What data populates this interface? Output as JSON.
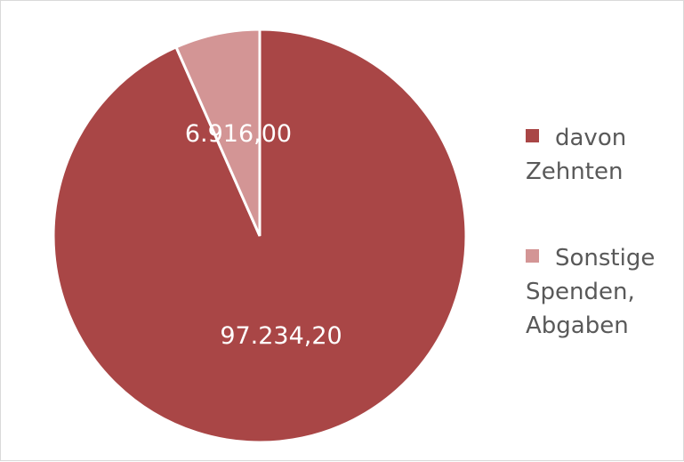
{
  "chart_data": {
    "type": "pie",
    "categories": [
      "davon Zehnten",
      "Sonstige Spenden, Abgaben"
    ],
    "values": [
      97234.2,
      6916.0
    ],
    "value_labels": [
      "97.234,20",
      "6.916,00"
    ],
    "colors": [
      "#a94646",
      "#d39595"
    ]
  }
}
